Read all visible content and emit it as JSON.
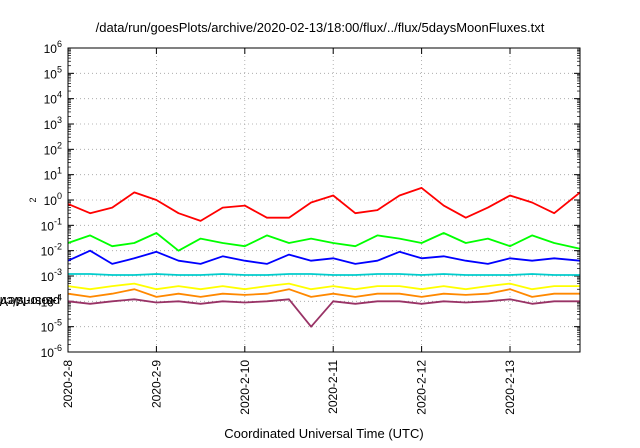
{
  "chart_data": {
    "type": "line",
    "title": "/data/run/goesPlots/archive/2020-02-13/18:00/flux/../flux/5daysMoonFluxes.txt",
    "xlabel": "Coordinated Universal Time (UTC)",
    "ylabel": {
      "pre": "protons/cm",
      "sup": "2",
      "post": "-s-sr-MeV"
    },
    "yscale": "log",
    "ylim": [
      1e-06,
      1000000.0
    ],
    "xlim": [
      "2020-02-08 00:00",
      "2020-02-13 19:00"
    ],
    "grid": true,
    "legend": "none",
    "x_tick_labels": [
      "2020-2-8",
      "2020-2-9",
      "2020-2-10",
      "2020-2-11",
      "2020-2-12",
      "2020-2-13"
    ],
    "y_tick_labels": [
      {
        "base": "10",
        "exp": "-6"
      },
      {
        "base": "10",
        "exp": "-5"
      },
      {
        "base": "10",
        "exp": "-4"
      },
      {
        "base": "10",
        "exp": "-3"
      },
      {
        "base": "10",
        "exp": "-2"
      },
      {
        "base": "10",
        "exp": "-1"
      },
      {
        "base": "10",
        "exp": "0"
      },
      {
        "base": "10",
        "exp": "1"
      },
      {
        "base": "10",
        "exp": "2"
      },
      {
        "base": "10",
        "exp": "3"
      },
      {
        "base": "10",
        "exp": "4"
      },
      {
        "base": "10",
        "exp": "5"
      },
      {
        "base": "10",
        "exp": "6"
      }
    ],
    "x": [
      "2020-02-08 00:00",
      "2020-02-08 06:00",
      "2020-02-08 12:00",
      "2020-02-08 18:00",
      "2020-02-09 00:00",
      "2020-02-09 06:00",
      "2020-02-09 12:00",
      "2020-02-09 18:00",
      "2020-02-10 00:00",
      "2020-02-10 06:00",
      "2020-02-10 12:00",
      "2020-02-10 18:00",
      "2020-02-11 00:00",
      "2020-02-11 06:00",
      "2020-02-11 12:00",
      "2020-02-11 18:00",
      "2020-02-12 00:00",
      "2020-02-12 06:00",
      "2020-02-12 12:00",
      "2020-02-12 18:00",
      "2020-02-13 00:00",
      "2020-02-13 06:00",
      "2020-02-13 12:00",
      "2020-02-13 19:00"
    ],
    "series": [
      {
        "color": "#ff0000",
        "values": [
          0.7,
          0.3,
          0.5,
          2,
          1,
          0.3,
          0.15,
          0.5,
          0.6,
          0.2,
          0.2,
          0.8,
          1.5,
          0.3,
          0.4,
          1.5,
          3,
          0.6,
          0.2,
          0.5,
          1.5,
          0.8,
          0.3,
          2
        ]
      },
      {
        "color": "#00ff00",
        "values": [
          0.02,
          0.04,
          0.015,
          0.02,
          0.05,
          0.01,
          0.03,
          0.02,
          0.015,
          0.04,
          0.02,
          0.03,
          0.02,
          0.015,
          0.04,
          0.03,
          0.02,
          0.05,
          0.02,
          0.03,
          0.015,
          0.04,
          0.02,
          0.012
        ]
      },
      {
        "color": "#0000ff",
        "values": [
          0.004,
          0.01,
          0.003,
          0.005,
          0.009,
          0.004,
          0.003,
          0.006,
          0.004,
          0.003,
          0.007,
          0.004,
          0.005,
          0.003,
          0.004,
          0.009,
          0.005,
          0.006,
          0.004,
          0.003,
          0.005,
          0.004,
          0.005,
          0.004
        ]
      },
      {
        "color": "#00cccc",
        "values": [
          0.0012,
          0.0012,
          0.0011,
          0.0011,
          0.0012,
          0.0011,
          0.0011,
          0.0012,
          0.0011,
          0.0011,
          0.0012,
          0.0012,
          0.0011,
          0.0011,
          0.0012,
          0.0012,
          0.0011,
          0.0012,
          0.0011,
          0.0011,
          0.0011,
          0.0012,
          0.0011,
          0.0011
        ]
      },
      {
        "color": "#ffff00",
        "values": [
          0.0004,
          0.0003,
          0.0004,
          0.0005,
          0.0003,
          0.0004,
          0.0003,
          0.0004,
          0.0003,
          0.0004,
          0.0005,
          0.0003,
          0.0004,
          0.0003,
          0.0004,
          0.0004,
          0.0003,
          0.0004,
          0.0003,
          0.0004,
          0.0005,
          0.0003,
          0.0004,
          0.0004
        ]
      },
      {
        "color": "#ff8800",
        "values": [
          0.0002,
          0.00015,
          0.0002,
          0.0003,
          0.00015,
          0.0002,
          0.00015,
          0.0002,
          0.00018,
          0.0002,
          0.0003,
          0.00015,
          0.0002,
          0.00015,
          0.0002,
          0.0002,
          0.00015,
          0.0002,
          0.00018,
          0.0002,
          0.0003,
          0.00015,
          0.0002,
          0.0002
        ]
      },
      {
        "color": "#993366",
        "values": [
          0.0001,
          8e-05,
          0.0001,
          0.00012,
          9e-05,
          0.0001,
          8e-05,
          0.0001,
          9e-05,
          0.0001,
          0.00012,
          1e-05,
          0.0001,
          8e-05,
          0.0001,
          0.0001,
          8e-05,
          0.0001,
          9e-05,
          0.0001,
          0.00012,
          8e-05,
          0.0001,
          0.0001
        ]
      }
    ]
  }
}
